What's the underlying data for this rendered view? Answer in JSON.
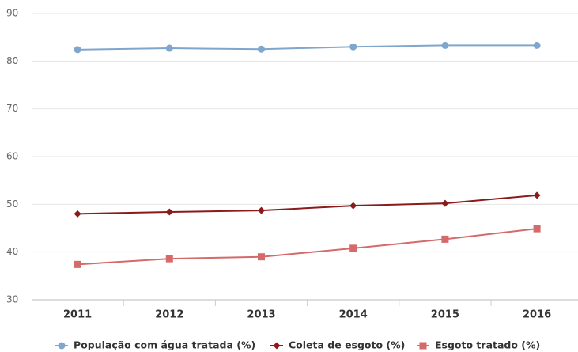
{
  "chart_data": {
    "type": "line",
    "categories": [
      "2011",
      "2012",
      "2013",
      "2014",
      "2015",
      "2016"
    ],
    "series": [
      {
        "name": "População com água tratada (%)",
        "color": "#7fa6cc",
        "marker": "circle",
        "values": [
          82.4,
          82.7,
          82.5,
          83.0,
          83.3,
          83.3
        ]
      },
      {
        "name": "Coleta de esgoto (%)",
        "color": "#8b1a1a",
        "marker": "diamond",
        "values": [
          48.0,
          48.4,
          48.7,
          49.7,
          50.2,
          51.9
        ]
      },
      {
        "name": "Esgoto tratado (%)",
        "color": "#d46a6a",
        "marker": "square",
        "values": [
          37.4,
          38.6,
          39.0,
          40.8,
          42.7,
          44.9
        ]
      }
    ],
    "ylim": [
      30,
      90
    ],
    "yticks": [
      30,
      40,
      50,
      60,
      70,
      80,
      90
    ],
    "grid": true,
    "legend": "bottom"
  }
}
